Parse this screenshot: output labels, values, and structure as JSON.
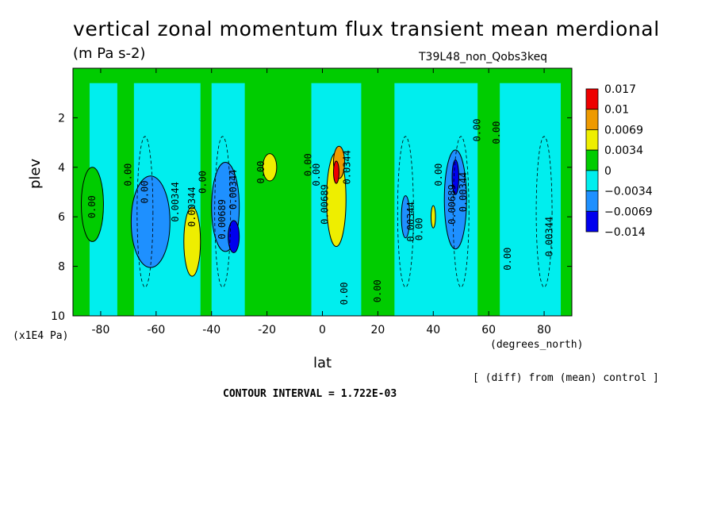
{
  "chart_data": {
    "type": "heatmap",
    "title": "vertical zonal momentum flux transient mean merdional",
    "units": "(m Pa s-2)",
    "run_name": "T39L48_non_Qobs3keq",
    "xlabel": "lat",
    "xunit": "(degrees_north)",
    "ylabel": "plev",
    "yunit": "(x1E4 Pa)",
    "xlim": [
      -90,
      90
    ],
    "ylim": [
      10,
      0
    ],
    "xticks": [
      "-80",
      "-60",
      "-40",
      "-20",
      "0",
      "20",
      "40",
      "60",
      "80"
    ],
    "xtick_values": [
      -80,
      -60,
      -40,
      -20,
      0,
      20,
      40,
      60,
      80
    ],
    "yticks": [
      "2",
      "4",
      "6",
      "8",
      "10"
    ],
    "ytick_values": [
      2,
      4,
      6,
      8,
      10
    ],
    "note": "[ (diff) from (mean) control ]",
    "contour_interval": "CONTOUR INTERVAL = 1.722E-03",
    "colorbar": {
      "labels": [
        "0.017",
        "0.01",
        "0.0069",
        "0.0034",
        "0",
        "−0.0034",
        "−0.0069",
        "−0.014"
      ],
      "colors": [
        "#ee0000",
        "#ee9a00",
        "#eeee00",
        "#00cc00",
        "#00eeee",
        "#1e90ff",
        "#0000ee"
      ]
    },
    "colors": {
      "red": "#ee0000",
      "orange": "#ee9a00",
      "yellow": "#eeee00",
      "green": "#00cc00",
      "cyan": "#00eeee",
      "blue": "#1e90ff",
      "darkblue": "#0000ee"
    },
    "features": [
      {
        "lat": -83,
        "plev": 5.5,
        "level": "green",
        "w": 4,
        "h": 3
      },
      {
        "lat": -62,
        "plev": 6.2,
        "level": "blue",
        "w": 7,
        "h": 3.7
      },
      {
        "lat": -47,
        "plev": 7.0,
        "level": "yellow",
        "w": 3,
        "h": 2.8
      },
      {
        "lat": -35,
        "plev": 5.6,
        "level": "blue",
        "w": 5,
        "h": 3.6
      },
      {
        "lat": -32,
        "plev": 6.8,
        "level": "darkblue",
        "w": 2,
        "h": 1.3
      },
      {
        "lat": -19,
        "plev": 4.0,
        "level": "yellow",
        "w": 2.5,
        "h": 1.1
      },
      {
        "lat": 5,
        "plev": 5.3,
        "level": "yellow",
        "w": 3.5,
        "h": 3.8
      },
      {
        "lat": 6,
        "plev": 3.8,
        "level": "orange",
        "w": 2,
        "h": 1.3
      },
      {
        "lat": 5,
        "plev": 4.2,
        "level": "red",
        "w": 1,
        "h": 0.9
      },
      {
        "lat": 30,
        "plev": 6.0,
        "level": "blue",
        "w": 1.5,
        "h": 1.7
      },
      {
        "lat": 48,
        "plev": 5.3,
        "level": "blue",
        "w": 4,
        "h": 4.0
      },
      {
        "lat": 48,
        "plev": 4.4,
        "level": "darkblue",
        "w": 1.2,
        "h": 1.4
      },
      {
        "lat": 40,
        "plev": 6.0,
        "level": "yellow",
        "w": 0.8,
        "h": 0.9
      }
    ],
    "contour_labels": [
      {
        "text": "0.00",
        "lat": -82,
        "plev": 5.6
      },
      {
        "text": "0.00",
        "lat": -69,
        "plev": 4.3
      },
      {
        "text": "0.00",
        "lat": -63,
        "plev": 5.0
      },
      {
        "text": "0.00344",
        "lat": -52,
        "plev": 5.4
      },
      {
        "text": "0.00344",
        "lat": -46,
        "plev": 5.6
      },
      {
        "text": "0.00",
        "lat": -42,
        "plev": 4.6
      },
      {
        "text": "0.00689",
        "lat": -35,
        "plev": 6.1
      },
      {
        "text": "0.00344",
        "lat": -31,
        "plev": 4.9
      },
      {
        "text": "0.00",
        "lat": -21,
        "plev": 4.2
      },
      {
        "text": "0.00",
        "lat": -4,
        "plev": 3.9
      },
      {
        "text": "0.00",
        "lat": -1,
        "plev": 4.3
      },
      {
        "text": "0.00689",
        "lat": 2,
        "plev": 5.5
      },
      {
        "text": "0.0344",
        "lat": 10,
        "plev": 4.0
      },
      {
        "text": "0.00",
        "lat": 9,
        "plev": 9.1
      },
      {
        "text": "0.00",
        "lat": 21,
        "plev": 9.0
      },
      {
        "text": "0.00344",
        "lat": 33,
        "plev": 6.2
      },
      {
        "text": "0.00",
        "lat": 36,
        "plev": 6.5
      },
      {
        "text": "0.00",
        "lat": 43,
        "plev": 4.3
      },
      {
        "text": "0.00689",
        "lat": 48,
        "plev": 5.5
      },
      {
        "text": "0.00344",
        "lat": 52,
        "plev": 5.0
      },
      {
        "text": "0.00",
        "lat": 57,
        "plev": 2.5
      },
      {
        "text": "0.00",
        "lat": 64,
        "plev": 2.6
      },
      {
        "text": "0.00",
        "lat": 68,
        "plev": 7.7
      },
      {
        "text": "0.00344",
        "lat": 83,
        "plev": 6.8
      }
    ]
  }
}
